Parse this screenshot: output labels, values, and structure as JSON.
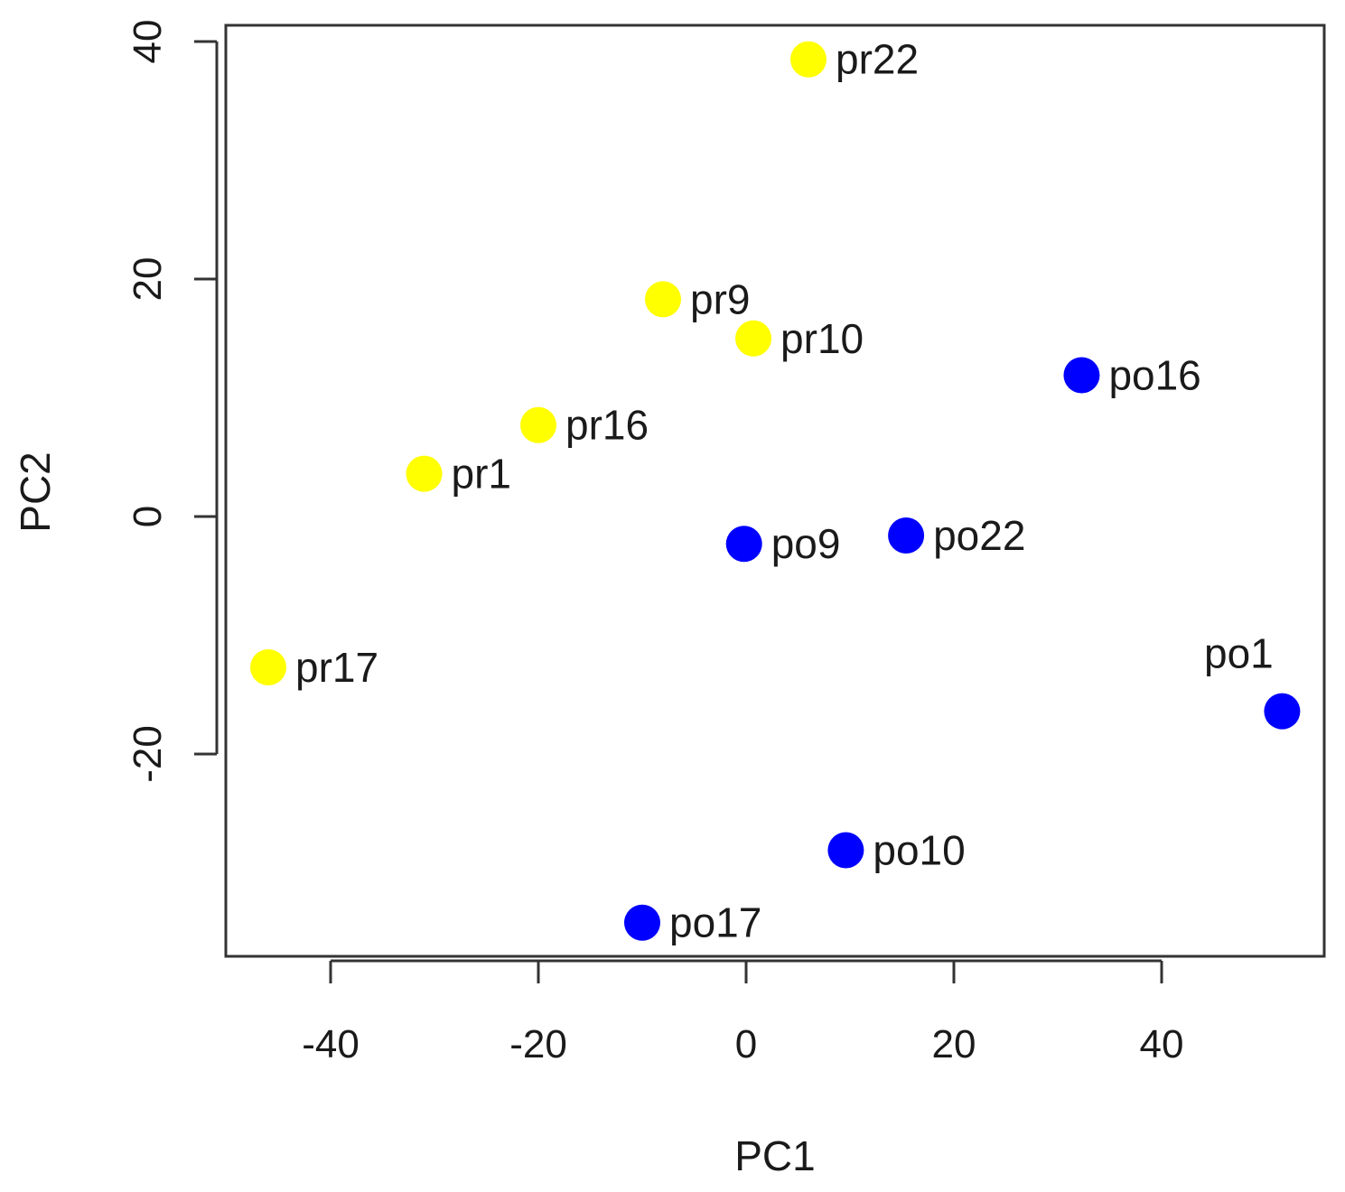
{
  "chart_data": {
    "type": "scatter",
    "title": "",
    "xlabel": "PC1",
    "ylabel": "PC2",
    "xlim": [
      -50,
      55
    ],
    "ylim": [
      -37,
      41
    ],
    "xticks": [
      "-40",
      "-20",
      "0",
      "20",
      "40"
    ],
    "yticks": [
      "-20",
      "0",
      "20",
      "40"
    ],
    "grid": false,
    "series": [
      {
        "name": "pr",
        "color": "#ffff00",
        "points": [
          {
            "label": "pr22",
            "x": 6,
            "y": 38.5
          },
          {
            "label": "pr9",
            "x": -8,
            "y": 18.3
          },
          {
            "label": "pr10",
            "x": 0.7,
            "y": 15
          },
          {
            "label": "pr16",
            "x": -20,
            "y": 7.7
          },
          {
            "label": "pr1",
            "x": -31,
            "y": 3.6
          },
          {
            "label": "pr17",
            "x": -46,
            "y": -12.7
          }
        ]
      },
      {
        "name": "po",
        "color": "#0000ff",
        "points": [
          {
            "label": "po16",
            "x": 32.3,
            "y": 11.9
          },
          {
            "label": "po9",
            "x": -0.2,
            "y": -2.3
          },
          {
            "label": "po22",
            "x": 15.4,
            "y": -1.6
          },
          {
            "label": "po1",
            "x": 51.6,
            "y": -16.4
          },
          {
            "label": "po10",
            "x": 9.6,
            "y": -28.1
          },
          {
            "label": "po17",
            "x": -10,
            "y": -34.2
          }
        ]
      }
    ]
  }
}
